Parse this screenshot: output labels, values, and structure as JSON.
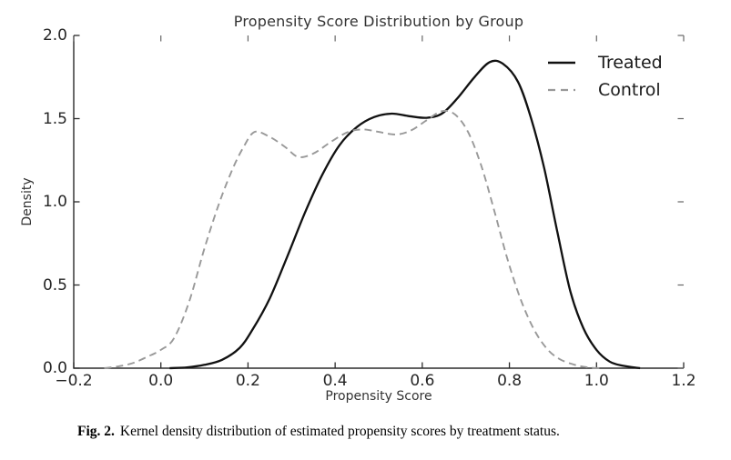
{
  "figure": {
    "title": "Propensity Score Distribution by Group",
    "x_axis_label": "Propensity Score",
    "y_axis_label": "Density"
  },
  "caption": {
    "label": "Fig. 2.",
    "text": "Kernel density distribution of estimated propensity scores by treatment status."
  },
  "chart_data": {
    "type": "line",
    "subtype": "kernel-density",
    "title": "Propensity Score Distribution by Group",
    "xlabel": "Propensity Score",
    "ylabel": "Density",
    "xlim": [
      -0.2,
      1.2
    ],
    "ylim": [
      0.0,
      2.0
    ],
    "grid": false,
    "legend_position": "upper right",
    "x_ticks": [
      -0.2,
      0.0,
      0.2,
      0.4,
      0.6,
      0.8,
      1.0,
      1.2
    ],
    "x_tick_labels": [
      "−0.2",
      "0.0",
      "0.2",
      "0.4",
      "0.6",
      "0.8",
      "1.0",
      "1.2"
    ],
    "y_ticks": [
      0.0,
      0.5,
      1.0,
      1.5,
      2.0
    ],
    "y_tick_labels": [
      "0.0",
      "0.5",
      "1.0",
      "1.5",
      "2.0"
    ],
    "axis_color": "#2b2b2b",
    "series": [
      {
        "name": "Treated",
        "style": "solid",
        "color": "#111111",
        "line_width": 2.3,
        "points": [
          [
            0.02,
            0.0
          ],
          [
            0.06,
            0.005
          ],
          [
            0.1,
            0.02
          ],
          [
            0.14,
            0.05
          ],
          [
            0.18,
            0.12
          ],
          [
            0.21,
            0.23
          ],
          [
            0.25,
            0.42
          ],
          [
            0.29,
            0.67
          ],
          [
            0.33,
            0.93
          ],
          [
            0.37,
            1.16
          ],
          [
            0.41,
            1.34
          ],
          [
            0.45,
            1.45
          ],
          [
            0.49,
            1.51
          ],
          [
            0.53,
            1.53
          ],
          [
            0.57,
            1.515
          ],
          [
            0.61,
            1.505
          ],
          [
            0.645,
            1.53
          ],
          [
            0.68,
            1.62
          ],
          [
            0.72,
            1.75
          ],
          [
            0.755,
            1.84
          ],
          [
            0.785,
            1.83
          ],
          [
            0.82,
            1.72
          ],
          [
            0.85,
            1.5
          ],
          [
            0.88,
            1.2
          ],
          [
            0.91,
            0.82
          ],
          [
            0.94,
            0.46
          ],
          [
            0.97,
            0.24
          ],
          [
            1.0,
            0.11
          ],
          [
            1.03,
            0.04
          ],
          [
            1.06,
            0.015
          ],
          [
            1.1,
            0.0
          ]
        ]
      },
      {
        "name": "Control",
        "style": "dashed",
        "color": "#999999",
        "line_width": 1.9,
        "points": [
          [
            -0.13,
            0.0
          ],
          [
            -0.1,
            0.01
          ],
          [
            -0.065,
            0.03
          ],
          [
            -0.03,
            0.07
          ],
          [
            0.0,
            0.11
          ],
          [
            0.03,
            0.18
          ],
          [
            0.065,
            0.4
          ],
          [
            0.1,
            0.72
          ],
          [
            0.135,
            1.0
          ],
          [
            0.165,
            1.2
          ],
          [
            0.19,
            1.33
          ],
          [
            0.215,
            1.42
          ],
          [
            0.25,
            1.39
          ],
          [
            0.285,
            1.33
          ],
          [
            0.315,
            1.27
          ],
          [
            0.35,
            1.29
          ],
          [
            0.39,
            1.36
          ],
          [
            0.43,
            1.42
          ],
          [
            0.465,
            1.435
          ],
          [
            0.5,
            1.42
          ],
          [
            0.54,
            1.405
          ],
          [
            0.575,
            1.43
          ],
          [
            0.61,
            1.49
          ],
          [
            0.645,
            1.545
          ],
          [
            0.675,
            1.525
          ],
          [
            0.705,
            1.42
          ],
          [
            0.735,
            1.22
          ],
          [
            0.765,
            0.95
          ],
          [
            0.795,
            0.66
          ],
          [
            0.825,
            0.42
          ],
          [
            0.855,
            0.24
          ],
          [
            0.885,
            0.12
          ],
          [
            0.915,
            0.055
          ],
          [
            0.95,
            0.02
          ],
          [
            0.98,
            0.005
          ],
          [
            1.01,
            0.0
          ]
        ]
      }
    ]
  }
}
